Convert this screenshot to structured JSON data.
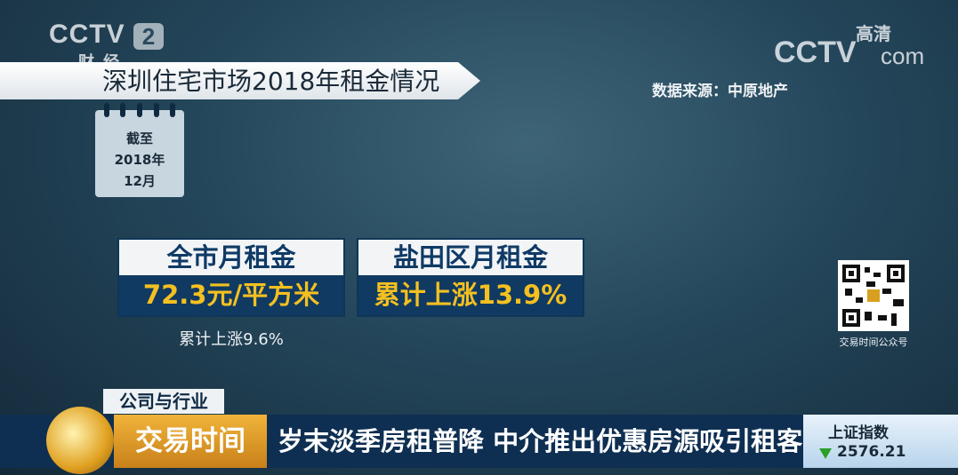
{
  "channel_logo": {
    "name": "CCTV",
    "number": "2",
    "channel": "财经"
  },
  "site_logo": {
    "name": "CCTV",
    "badge": "高清",
    "suffix": "com"
  },
  "header": {
    "title": "深圳住宅市场2018年租金情况",
    "source": "数据来源：中原地产"
  },
  "calendar": {
    "label": "截至",
    "year": "2018年",
    "month": "12月"
  },
  "cards": [
    {
      "title": "全市月租金",
      "value": "72.3元/平方米",
      "note": "累计上涨9.6%"
    },
    {
      "title": "盐田区月租金",
      "value": "累计上涨13.9%"
    }
  ],
  "qr": {
    "caption": "交易时间公众号"
  },
  "ticker": {
    "category": "公司与行业",
    "program": "交易时间",
    "headline": "岁末淡季房租普降 中介推出优惠房源吸引租客",
    "index_name": "上证指数",
    "index_value": "2576.21"
  }
}
